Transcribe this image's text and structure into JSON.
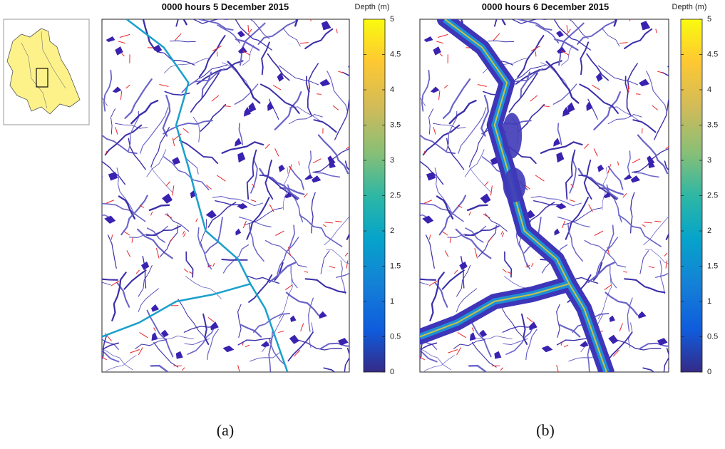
{
  "panels": [
    {
      "title": "0000 hours 5 December 2015",
      "colorbar": {
        "label": "Depth (m)",
        "lim": [
          0,
          5
        ],
        "ticks": [
          0,
          0.5,
          1,
          1.5,
          2,
          2.5,
          3,
          3.5,
          4,
          4.5,
          5
        ]
      },
      "caption": "(a)"
    },
    {
      "title": "0000 hours 6 December 2015",
      "colorbar": {
        "label": "Depth (m)",
        "lim": [
          0,
          5
        ],
        "ticks": [
          0,
          0.5,
          1,
          1.5,
          2,
          2.5,
          3,
          3.5,
          4,
          4.5,
          5
        ]
      },
      "caption": "(b)"
    }
  ]
}
